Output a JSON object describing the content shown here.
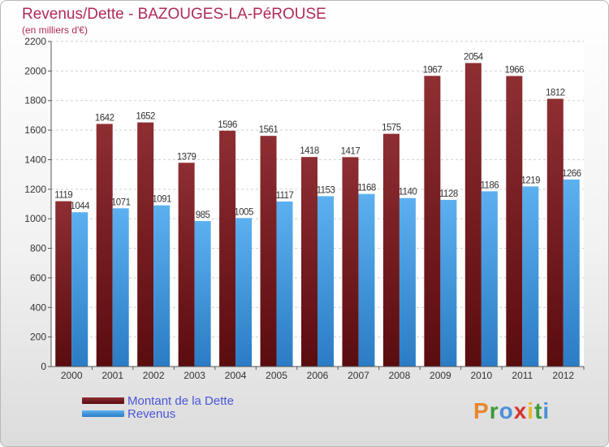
{
  "header": {
    "title": "Revenus/Dette - BAZOUGES-LA-PéROUSE",
    "subtitle": "(en milliers d'€)"
  },
  "chart_data": {
    "type": "bar",
    "title": "Revenus/Dette - BAZOUGES-LA-PéROUSE",
    "subtitle": "(en milliers d'€)",
    "categories": [
      "2000",
      "2001",
      "2002",
      "2003",
      "2004",
      "2005",
      "2006",
      "2007",
      "2008",
      "2009",
      "2010",
      "2011",
      "2012"
    ],
    "series": [
      {
        "name": "Montant de la Dette",
        "color": "#7a1f24",
        "values": [
          1119,
          1642,
          1652,
          1379,
          1596,
          1561,
          1418,
          1417,
          1575,
          1967,
          2054,
          1966,
          1812
        ]
      },
      {
        "name": "Revenus",
        "color": "#4b9fe0",
        "values": [
          1044,
          1071,
          1091,
          985,
          1005,
          1117,
          1153,
          1168,
          1140,
          1128,
          1186,
          1219,
          1266
        ]
      }
    ],
    "yticks": [
      0,
      200,
      400,
      600,
      800,
      1000,
      1200,
      1400,
      1600,
      1800,
      2000,
      2200
    ],
    "ylim": [
      0,
      2200
    ],
    "grid": true,
    "legend_position": "bottom-left"
  },
  "logo": {
    "letters": [
      {
        "ch": "P",
        "color": "#e8862a"
      },
      {
        "ch": "r",
        "color": "#3a9a3a"
      },
      {
        "ch": "o",
        "color": "#4a90d9"
      },
      {
        "ch": "x",
        "color": "#d6332e"
      },
      {
        "ch": "i",
        "color": "#e8b72a"
      },
      {
        "ch": "t",
        "color": "#3a9a3a"
      },
      {
        "ch": "i",
        "color": "#4a90d9"
      }
    ]
  }
}
